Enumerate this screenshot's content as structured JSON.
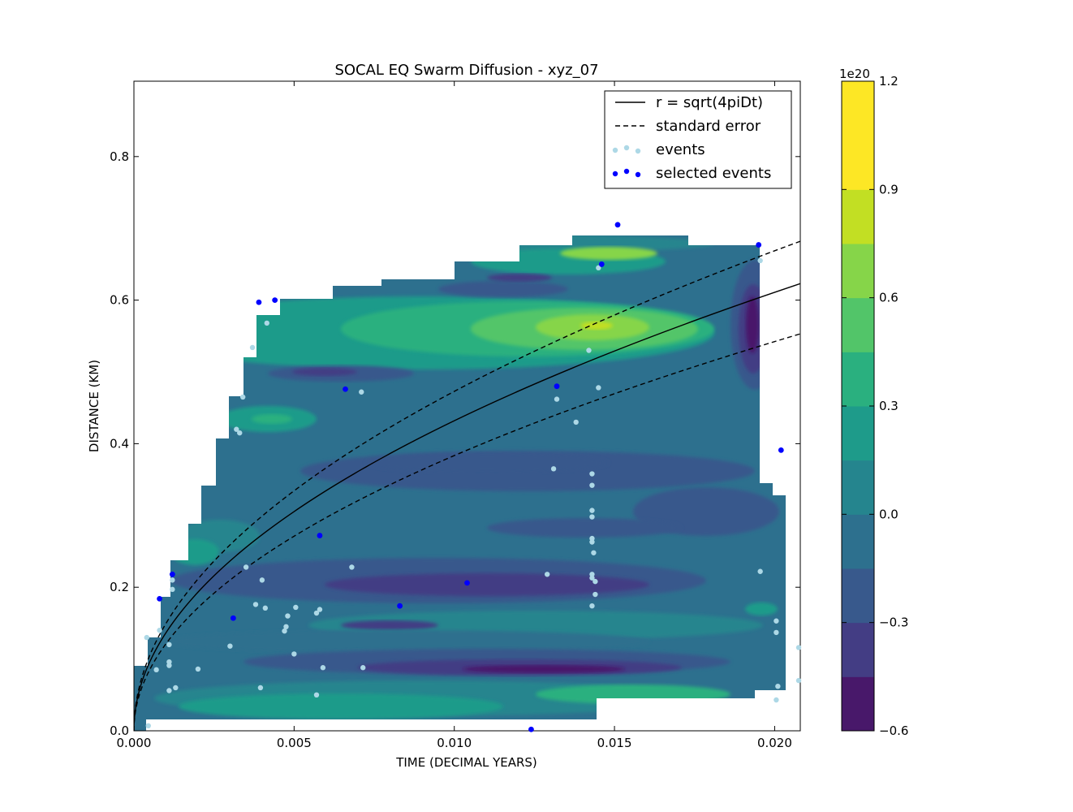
{
  "chart_data": {
    "type": "contour",
    "title": "SOCAL EQ Swarm Diffusion - xyz_07",
    "xlabel": "TIME (DECIMAL YEARS)",
    "ylabel": "DISTANCE (KM)",
    "xlim": [
      0,
      0.0208
    ],
    "ylim": [
      0,
      0.905
    ],
    "x_ticks": [
      0.0,
      0.005,
      0.01,
      0.015,
      0.02
    ],
    "x_tick_labels": [
      "0.000",
      "0.005",
      "0.010",
      "0.015",
      "0.020"
    ],
    "y_ticks": [
      0.0,
      0.2,
      0.4,
      0.6,
      0.8
    ],
    "y_tick_labels": [
      "0.0",
      "0.2",
      "0.4",
      "0.6",
      "0.8"
    ],
    "legend": {
      "placement": "top-right",
      "entries": [
        {
          "label": "r = sqrt(4piDt)",
          "style": "solid-line"
        },
        {
          "label": "standard error",
          "style": "dashed-line"
        },
        {
          "label": "events",
          "style": "light-dots"
        },
        {
          "label": "selected events",
          "style": "dark-dots"
        }
      ]
    },
    "colorbar": {
      "multiplier": "1e20",
      "min": -0.6,
      "max": 1.2,
      "tick_values": [
        -0.6,
        -0.3,
        0.0,
        0.3,
        0.6,
        0.9,
        1.2
      ],
      "tick_labels": [
        "−0.6",
        "−0.3",
        "0.0",
        "0.3",
        "0.6",
        "0.9",
        "1.2"
      ],
      "levels": [
        -0.6,
        -0.45,
        -0.3,
        -0.15,
        0.0,
        0.15,
        0.3,
        0.45,
        0.6,
        0.75,
        0.9,
        1.05,
        1.2
      ],
      "colors": [
        "#48186a",
        "#433d84",
        "#38598c",
        "#2d708e",
        "#25858e",
        "#1e9b8a",
        "#2ab07f",
        "#52c569",
        "#86d549",
        "#c2df23",
        "#fde725",
        "#fde725"
      ]
    },
    "fit_curve": {
      "name": "r = sqrt(4piDt)",
      "r_at_t_max": 0.623,
      "t_max": 0.0208
    },
    "error_upper": {
      "r_at_t_max": 0.682
    },
    "error_lower": {
      "r_at_t_max": 0.553
    },
    "events": [
      [
        0.0004,
        0.13
      ],
      [
        0.00045,
        0.007
      ],
      [
        0.0007,
        0.085
      ],
      [
        0.0008,
        0.14
      ],
      [
        0.0011,
        0.12
      ],
      [
        0.0011,
        0.096
      ],
      [
        0.0011,
        0.091
      ],
      [
        0.0011,
        0.056
      ],
      [
        0.0012,
        0.21
      ],
      [
        0.0012,
        0.197
      ],
      [
        0.0013,
        0.06
      ],
      [
        0.002,
        0.086
      ],
      [
        0.003,
        0.118
      ],
      [
        0.0032,
        0.42
      ],
      [
        0.0033,
        0.415
      ],
      [
        0.0034,
        0.465
      ],
      [
        0.0035,
        0.228
      ],
      [
        0.0037,
        0.534
      ],
      [
        0.0038,
        0.176
      ],
      [
        0.00395,
        0.06
      ],
      [
        0.004,
        0.21
      ],
      [
        0.0041,
        0.171
      ],
      [
        0.00415,
        0.568
      ],
      [
        0.0047,
        0.139
      ],
      [
        0.00475,
        0.145
      ],
      [
        0.0048,
        0.16
      ],
      [
        0.005,
        0.107
      ],
      [
        0.00505,
        0.172
      ],
      [
        0.0057,
        0.05
      ],
      [
        0.0057,
        0.164
      ],
      [
        0.0058,
        0.169
      ],
      [
        0.0059,
        0.088
      ],
      [
        0.0068,
        0.228
      ],
      [
        0.0071,
        0.472
      ],
      [
        0.00715,
        0.088
      ],
      [
        0.0129,
        0.218
      ],
      [
        0.0131,
        0.365
      ],
      [
        0.0132,
        0.462
      ],
      [
        0.0138,
        0.43
      ],
      [
        0.0142,
        0.53
      ],
      [
        0.0143,
        0.358
      ],
      [
        0.0143,
        0.342
      ],
      [
        0.0143,
        0.307
      ],
      [
        0.0143,
        0.298
      ],
      [
        0.0143,
        0.268
      ],
      [
        0.0143,
        0.263
      ],
      [
        0.0143,
        0.218
      ],
      [
        0.0143,
        0.213
      ],
      [
        0.0143,
        0.174
      ],
      [
        0.01435,
        0.248
      ],
      [
        0.0144,
        0.208
      ],
      [
        0.0144,
        0.19
      ],
      [
        0.0145,
        0.645
      ],
      [
        0.0145,
        0.478
      ],
      [
        0.01955,
        0.222
      ],
      [
        0.01955,
        0.655
      ],
      [
        0.02005,
        0.153
      ],
      [
        0.02005,
        0.137
      ],
      [
        0.02005,
        0.043
      ],
      [
        0.0201,
        0.062
      ],
      [
        0.02075,
        0.116
      ],
      [
        0.02075,
        0.07
      ]
    ],
    "selected_events": [
      [
        0.0008,
        0.184
      ],
      [
        0.0012,
        0.218
      ],
      [
        0.0031,
        0.157
      ],
      [
        0.0039,
        0.597
      ],
      [
        0.0044,
        0.6
      ],
      [
        0.0058,
        0.272
      ],
      [
        0.0066,
        0.476
      ],
      [
        0.0083,
        0.174
      ],
      [
        0.0104,
        0.206
      ],
      [
        0.0124,
        0.002
      ],
      [
        0.0132,
        0.48
      ],
      [
        0.0146,
        0.65
      ],
      [
        0.0151,
        0.705
      ],
      [
        0.0195,
        0.677
      ],
      [
        0.0202,
        0.391
      ]
    ]
  }
}
